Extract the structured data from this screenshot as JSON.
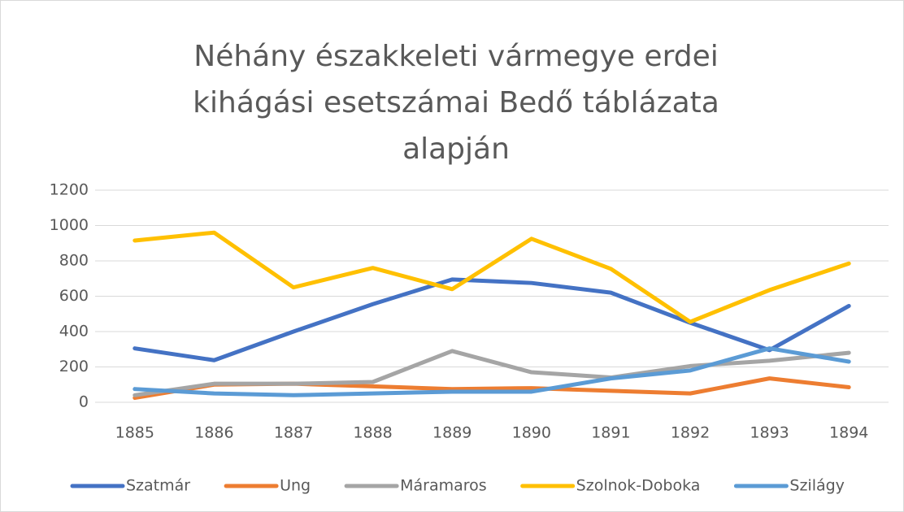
{
  "chart_data": {
    "type": "line",
    "title": "Néhány északkeleti vármegye erdei kihágási esetszámai Bedő táblázata alapján",
    "categories": [
      "1885",
      "1886",
      "1887",
      "1888",
      "1889",
      "1890",
      "1891",
      "1892",
      "1893",
      "1894"
    ],
    "series": [
      {
        "name": "Szatmár",
        "color": "#4472c4",
        "values": [
          305,
          238,
          400,
          555,
          695,
          675,
          620,
          450,
          295,
          545
        ]
      },
      {
        "name": "Ung",
        "color": "#ed7d31",
        "values": [
          25,
          100,
          105,
          90,
          75,
          80,
          65,
          50,
          135,
          85
        ]
      },
      {
        "name": "Máramaros",
        "color": "#a5a5a5",
        "values": [
          40,
          105,
          105,
          115,
          290,
          170,
          140,
          205,
          235,
          280
        ]
      },
      {
        "name": "Szolnok-Doboka",
        "color": "#ffc000",
        "values": [
          915,
          960,
          650,
          760,
          640,
          925,
          755,
          455,
          635,
          785
        ]
      },
      {
        "name": "Szilágy",
        "color": "#5b9bd5",
        "values": [
          75,
          50,
          40,
          50,
          60,
          60,
          135,
          180,
          305,
          230
        ]
      }
    ],
    "ylim": [
      0,
      1200
    ],
    "yticks": [
      0,
      200,
      400,
      600,
      800,
      1000,
      1200
    ],
    "grid": true,
    "legend": "bottom"
  }
}
